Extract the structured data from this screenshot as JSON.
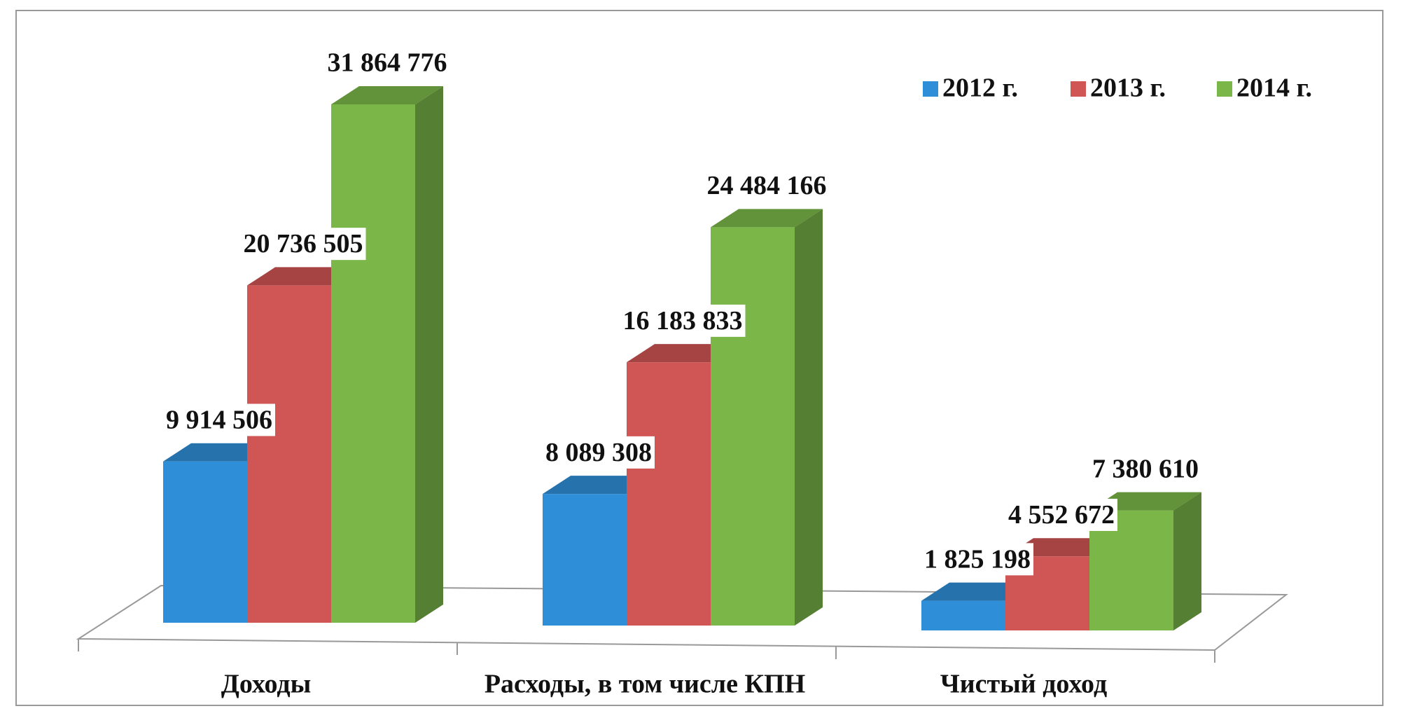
{
  "chart_data": {
    "type": "bar3d",
    "categories": [
      "Доходы",
      "Расходы, в том числе КПН",
      "Чистый доход"
    ],
    "series": [
      {
        "name": "2012 г.",
        "color": "#2e8fd8",
        "values": [
          9914506,
          8089308,
          1825198
        ],
        "value_labels": [
          "9 914 506",
          "8 089 308",
          "1 825 198"
        ]
      },
      {
        "name": "2013 г.",
        "color": "#d05555",
        "values": [
          20736505,
          16183833,
          4552672
        ],
        "value_labels": [
          "20 736 505",
          "16 183 833",
          "4 552 672"
        ]
      },
      {
        "name": "2014 г.",
        "color": "#7ab648",
        "values": [
          31864776,
          24484166,
          7380610
        ],
        "value_labels": [
          "31 864 776",
          "24 484 166",
          "7 380 610"
        ]
      }
    ],
    "legend": "top-right"
  }
}
